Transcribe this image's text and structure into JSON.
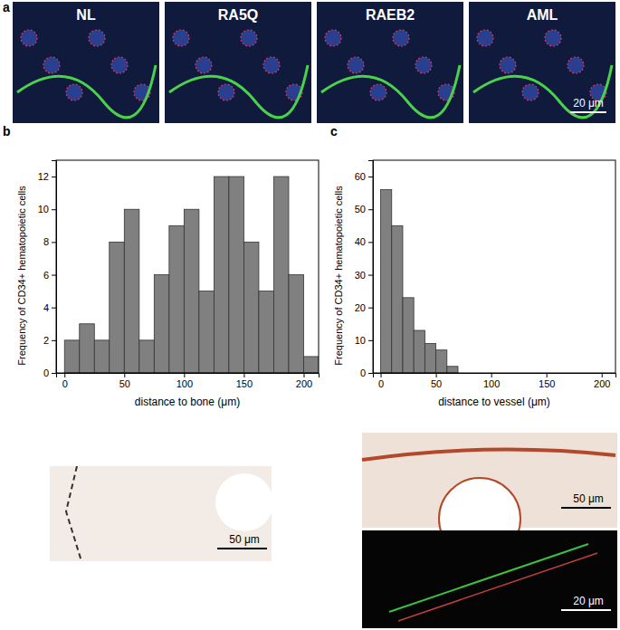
{
  "chart_data": [
    {
      "type": "histogram",
      "xlabel": "distance to bone (μm)",
      "ylabel": "Frequency of CD34+ hematopoietic cells",
      "bins": [
        0,
        12.5,
        25,
        37.5,
        50,
        62.5,
        75,
        87.5,
        100,
        112.5,
        125,
        137.5,
        150,
        162.5,
        175,
        187.5,
        200,
        212.5
      ],
      "values": [
        2,
        3,
        2,
        8,
        10,
        2,
        6,
        9,
        10,
        5,
        12,
        12,
        8,
        5,
        12,
        6,
        1
      ],
      "color": "#808080",
      "xlim": [
        -7,
        212.5
      ],
      "xticks": [
        0,
        50,
        100,
        150,
        200
      ],
      "ylim": [
        0,
        13
      ],
      "yticks": [
        0,
        2,
        4,
        6,
        8,
        10,
        12
      ]
    },
    {
      "type": "histogram",
      "xlabel": "distance to vessel (μm)",
      "ylabel": "Frequency of CD34+ hematopoietic cells",
      "bins": [
        0,
        10,
        20,
        30,
        40,
        50,
        60,
        70
      ],
      "values": [
        56,
        45,
        23,
        13,
        9,
        7,
        2
      ],
      "color": "#808080",
      "xlim": [
        -7,
        212.5
      ],
      "xticks": [
        0,
        50,
        100,
        150,
        200
      ],
      "ylim": [
        0,
        65
      ],
      "yticks": [
        0,
        10,
        20,
        30,
        40,
        50,
        60
      ]
    }
  ],
  "figure": {
    "panel_labels": [
      "a",
      "b",
      "c"
    ],
    "micrographs": [
      {
        "label": "NL"
      },
      {
        "label": "RA5Q"
      },
      {
        "label": "RAEB2"
      },
      {
        "label": "AML",
        "scale_bar": "20 μm"
      }
    ],
    "bottom_images": [
      {
        "scale_bar": "50 μm"
      },
      {
        "scale_bar": "50 μm"
      },
      {
        "scale_bar": "20 μm"
      }
    ]
  }
}
